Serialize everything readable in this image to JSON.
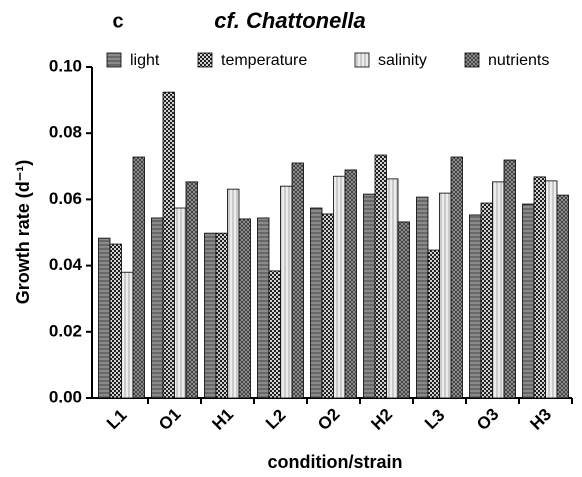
{
  "chart_data": {
    "type": "bar",
    "panel_label": "c",
    "title": "cf. Chattonella",
    "x_label": "condition/strain",
    "y_label": "Growth rate (d⁻¹)",
    "categories": [
      "L1",
      "O1",
      "H1",
      "L2",
      "O2",
      "H2",
      "L3",
      "O3",
      "H3"
    ],
    "series": [
      {
        "name": "light",
        "color": "#8a8a8a",
        "pattern": "horizontal",
        "values": [
          0.0483,
          0.0544,
          0.0498,
          0.0544,
          0.0574,
          0.0616,
          0.0607,
          0.0553,
          0.0586
        ]
      },
      {
        "name": "temperature",
        "color": "#d0d0d0",
        "pattern": "checker",
        "values": [
          0.0465,
          0.0924,
          0.0498,
          0.0384,
          0.0556,
          0.0734,
          0.0447,
          0.0589,
          0.0668
        ]
      },
      {
        "name": "salinity",
        "color": "#ececec",
        "pattern": "vertical",
        "values": [
          0.038,
          0.0574,
          0.0631,
          0.064,
          0.067,
          0.0662,
          0.0619,
          0.0653,
          0.0656
        ]
      },
      {
        "name": "nutrients",
        "color": "#a0a0a0",
        "pattern": "cross",
        "values": [
          0.0728,
          0.0653,
          0.0541,
          0.071,
          0.0689,
          0.0532,
          0.0728,
          0.0719,
          0.0613
        ]
      }
    ],
    "ylim": [
      0,
      0.1
    ],
    "yticks": [
      {
        "value": 0,
        "label": "0.00"
      },
      {
        "value": 0.02,
        "label": "0.02"
      },
      {
        "value": 0.04,
        "label": "0.04"
      },
      {
        "value": 0.06,
        "label": "0.06"
      },
      {
        "value": 0.08,
        "label": "0.08"
      },
      {
        "value": 0.1,
        "label": "0.10"
      }
    ]
  }
}
